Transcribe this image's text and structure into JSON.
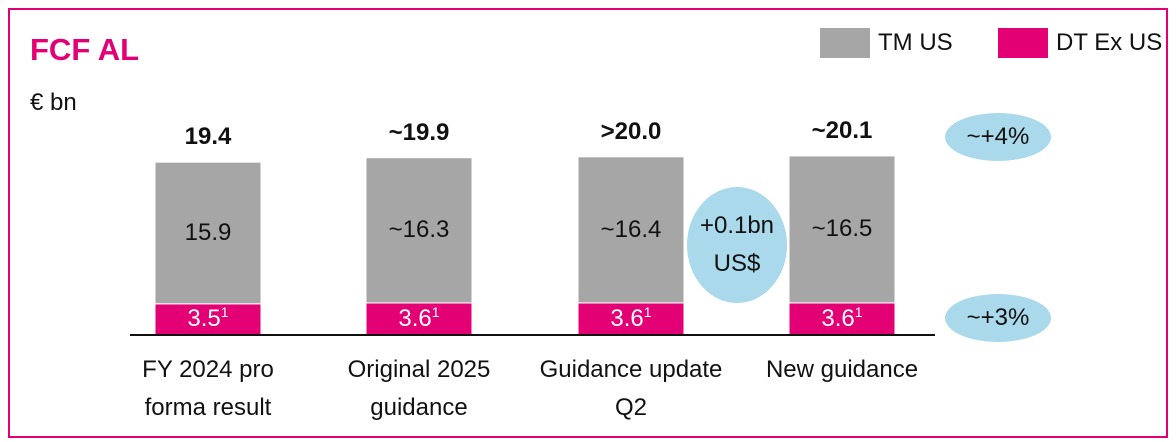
{
  "chart_data": {
    "type": "bar",
    "stacked": true,
    "title": "FCF AL",
    "subtitle": "€ bn",
    "categories": [
      "FY 2024 pro forma result",
      "Original 2025 guidance",
      "Guidance update Q2",
      "New guidance"
    ],
    "series": [
      {
        "name": "DT Ex US",
        "color": "#e20074",
        "values": [
          3.5,
          3.6,
          3.6,
          3.6
        ],
        "value_labels": [
          "3.5",
          "3.6",
          "3.6",
          "3.6"
        ],
        "footnote_refs": [
          "1",
          "1",
          "1",
          "1"
        ]
      },
      {
        "name": "TM US",
        "color": "#a6a6a6",
        "values": [
          15.9,
          16.3,
          16.4,
          16.5
        ],
        "value_labels": [
          "15.9",
          "~16.3",
          "~16.4",
          "~16.5"
        ]
      }
    ],
    "totals": [
      19.4,
      19.9,
      20.0,
      20.1
    ],
    "total_labels": [
      "19.4",
      "~19.9",
      ">20.0",
      "~20.1"
    ],
    "ylim": [
      0,
      22
    ],
    "annotations": {
      "fx_effect": "+0.1bn US$",
      "total_growth": "~+4%",
      "ex_us_growth": "~+3%"
    },
    "legend_position": "top right"
  }
}
